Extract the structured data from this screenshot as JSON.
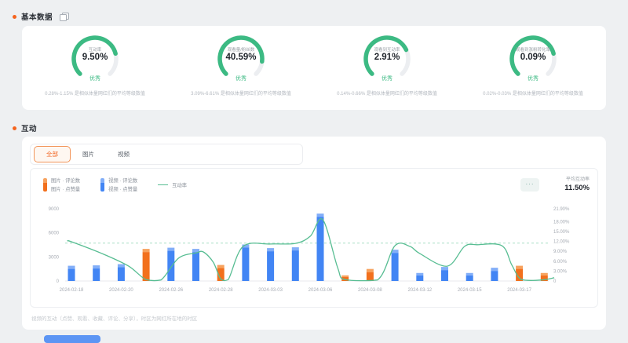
{
  "basic_section": {
    "title": "基本数据"
  },
  "gauges": [
    {
      "label": "互动率",
      "value": "9.50%",
      "badge": "优秀",
      "desc": "0.28%-1.15% 是相似体量网红们的平均等级数值",
      "fill": 0.78
    },
    {
      "label": "观看量/粉丝数",
      "value": "40.59%",
      "badge": "优秀",
      "desc": "3.09%-6.61% 是相似体量网红们的平均等级数值",
      "fill": 0.86
    },
    {
      "label": "观看到互动率",
      "value": "2.91%",
      "badge": "优秀",
      "desc": "0.14%-0.66% 是相似体量网红们的平均等级数值",
      "fill": 0.74
    },
    {
      "label": "观看到涨粉转化率",
      "value": "0.09%",
      "badge": "优秀",
      "desc": "0.02%-0.03% 是相似体量网红们的平均等级数值",
      "fill": 0.78
    }
  ],
  "interaction_section": {
    "title": "互动"
  },
  "tabs": [
    {
      "label": "全部",
      "active": true
    },
    {
      "label": "图片",
      "active": false
    },
    {
      "label": "视频",
      "active": false
    }
  ],
  "legend": {
    "image": {
      "line1": "图片 · 评论数",
      "line2": "图片 · 点赞量"
    },
    "video": {
      "line1": "视频 · 评论数",
      "line2": "视频 · 点赞量"
    },
    "rate": {
      "label": "互动率"
    }
  },
  "more_menu": "···",
  "average": {
    "label": "平均互动率",
    "value": "11.50%"
  },
  "chart_data": {
    "type": "bar+line",
    "x_labels": [
      "2024-02-18",
      "2024-02-20",
      "2024-02-26",
      "2024-02-28",
      "2024-03-03",
      "2024-03-06",
      "2024-03-08",
      "2024-03-12",
      "2024-03-15",
      "2024-03-17"
    ],
    "left_axis": {
      "ticks": [
        "9000",
        "6000",
        "3000",
        "0"
      ],
      "values": [
        9000,
        6000,
        3000,
        0
      ],
      "max": 9000
    },
    "right_axis": {
      "ticks": [
        "21.90%",
        "18.00%",
        "15.00%",
        "12.00%",
        "9.00%",
        "6.00%",
        "3.00%",
        "0"
      ],
      "values": [
        21.9,
        18,
        15,
        12,
        9,
        6,
        3,
        0
      ],
      "max": 21.9
    },
    "avg_line_pct": 11.5,
    "bars": [
      {
        "v": 1900,
        "t": "video"
      },
      {
        "v": 1950,
        "t": "video"
      },
      {
        "v": 2100,
        "t": "video"
      },
      {
        "v": 4000,
        "t": "image"
      },
      {
        "v": 4150,
        "t": "video"
      },
      {
        "v": 4000,
        "t": "video"
      },
      {
        "v": 2000,
        "t": "image"
      },
      {
        "v": 4550,
        "t": "video"
      },
      {
        "v": 4100,
        "t": "video"
      },
      {
        "v": 4200,
        "t": "video"
      },
      {
        "v": 8400,
        "t": "video"
      },
      {
        "v": 700,
        "t": "image"
      },
      {
        "v": 1500,
        "t": "image"
      },
      {
        "v": 3900,
        "t": "video"
      },
      {
        "v": 1000,
        "t": "video"
      },
      {
        "v": 1750,
        "t": "video"
      },
      {
        "v": 1000,
        "t": "video"
      },
      {
        "v": 1650,
        "t": "video"
      },
      {
        "v": 1900,
        "t": "image"
      },
      {
        "v": 1000,
        "t": "image"
      }
    ],
    "line_points": [
      [
        -0.15,
        12.1
      ],
      [
        0,
        11.9
      ],
      [
        1.3,
        8.1
      ],
      [
        2.3,
        4.5
      ],
      [
        3,
        0.4
      ],
      [
        3.6,
        0.3
      ],
      [
        4.3,
        6.9
      ],
      [
        5,
        8.5
      ],
      [
        5.3,
        8.8
      ],
      [
        5.7,
        5.7
      ],
      [
        6,
        0.6
      ],
      [
        6.3,
        0.4
      ],
      [
        6.9,
        10.5
      ],
      [
        8,
        11.2
      ],
      [
        9,
        11.4
      ],
      [
        9.6,
        13.6
      ],
      [
        10.1,
        18.6
      ],
      [
        10.7,
        4
      ],
      [
        11,
        0.4
      ],
      [
        12.3,
        0.3
      ],
      [
        13,
        10.7
      ],
      [
        13.6,
        10.5
      ],
      [
        14,
        8.3
      ],
      [
        15.1,
        4.5
      ],
      [
        15.8,
        10.5
      ],
      [
        16.3,
        11
      ],
      [
        17.3,
        10.7
      ],
      [
        17.7,
        4.8
      ],
      [
        18.1,
        0.4
      ],
      [
        18.9,
        0.3
      ],
      [
        19.4,
        1
      ]
    ],
    "colors": {
      "image": "#f2701d",
      "image_cap": "#f7a25e",
      "video": "#4285f4",
      "video_cap": "#82aef8",
      "line": "#57bd92",
      "avg_dash": "#a9dfc6",
      "axis_text": "#a6abb3"
    }
  },
  "footer": {
    "note": "视频的互动（点赞、观看、收藏、评论、分享），时区为网红所在地的时区"
  }
}
